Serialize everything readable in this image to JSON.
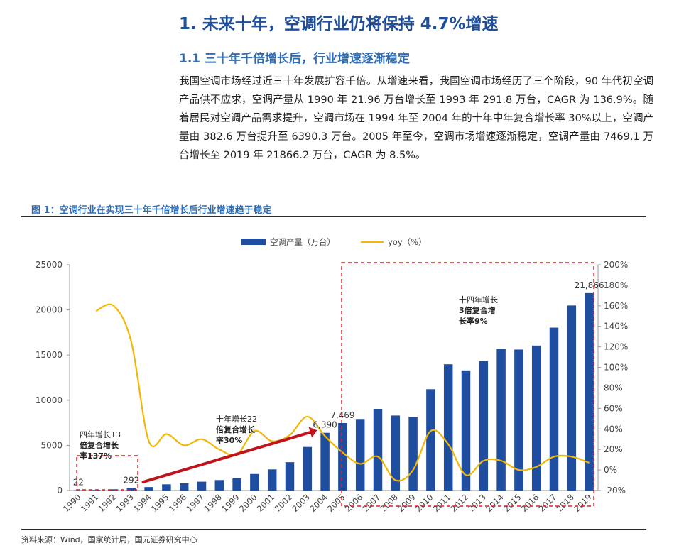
{
  "heading1": "1. 未来十年，空调行业仍将保持 4.7%增速",
  "heading2": "1.1 三十年千倍增长后，行业增速逐渐稳定",
  "paragraph": "我国空调市场经过近三十年发展扩容千倍。从增速来看，我国空调市场经历了三个阶段，90 年代初空调产品供不应求，空调产量从 1990 年 21.96 万台增长至 1993 年 291.8 万台，CAGR 为 136.9%。随着居民对空调产品需求提升，空调市场在 1994 年至 2004 年的十年中年复合增长率 30%以上，空调产量由 382.6 万台提升至 6390.3 万台。2005 年至今，空调市场增速逐渐稳定，空调产量由 7469.1 万台增长至 2019 年 21866.2 万台，CAGR 为 8.5%。",
  "figure_title": "图 1：空调行业在实现三十年千倍增长后行业增速趋于稳定",
  "source": "资料来源：Wind，国家统计局，国元证券研究中心",
  "chart_data": {
    "type": "bar",
    "categories": [
      "1990",
      "1991",
      "1992",
      "1993",
      "1994",
      "1995",
      "1996",
      "1997",
      "1998",
      "1999",
      "2000",
      "2001",
      "2002",
      "2003",
      "2004",
      "2005",
      "2006",
      "2007",
      "2008",
      "2009",
      "2010",
      "2011",
      "2012",
      "2013",
      "2014",
      "2015",
      "2016",
      "2017",
      "2018",
      "2019"
    ],
    "series": [
      {
        "name": "空调产量（万台）",
        "type": "bar",
        "axis": "left",
        "color": "#1f4ea1",
        "values": [
          22,
          63,
          132,
          292,
          383,
          683,
          786,
          975,
          1157,
          1338,
          1827,
          2334,
          3135,
          4821,
          6390,
          7469,
          7920,
          9040,
          8300,
          8170,
          11220,
          13980,
          13300,
          14330,
          15670,
          15610,
          16050,
          18040,
          20490,
          21866
        ]
      },
      {
        "name": "yoy（%）",
        "type": "line",
        "axis": "right",
        "color": "#f2b705",
        "values": [
          null,
          155,
          160,
          125,
          28,
          35,
          24,
          30,
          20,
          15,
          38,
          28,
          34,
          52,
          33,
          17,
          6,
          13,
          -10,
          0,
          38,
          25,
          -5,
          9,
          9,
          0,
          3,
          13,
          13,
          7
        ]
      }
    ],
    "ylim_left": [
      0,
      25000
    ],
    "yticks_left": [
      0,
      5000,
      10000,
      15000,
      20000,
      25000
    ],
    "ylim_right": [
      -20,
      200
    ],
    "yticks_right": [
      "-20%",
      "0%",
      "20%",
      "40%",
      "60%",
      "80%",
      "100%",
      "120%",
      "140%",
      "160%",
      "180%",
      "200%"
    ],
    "data_labels": [
      {
        "index": 0,
        "text": "22"
      },
      {
        "index": 3,
        "text": "292"
      },
      {
        "index": 14,
        "text": "6,390"
      },
      {
        "index": 15,
        "text": "7,469"
      },
      {
        "index": 29,
        "text": "21,866"
      }
    ],
    "annotations": [
      {
        "lines": [
          "四年增长13",
          "倍复合增长",
          "率137%"
        ]
      },
      {
        "lines": [
          "十年增长22",
          "倍复合增长",
          "率30%"
        ]
      },
      {
        "lines": [
          "十四年增长",
          "3倍复合增",
          "长率9%"
        ]
      }
    ],
    "legend_position": "top-center",
    "grid": false
  }
}
